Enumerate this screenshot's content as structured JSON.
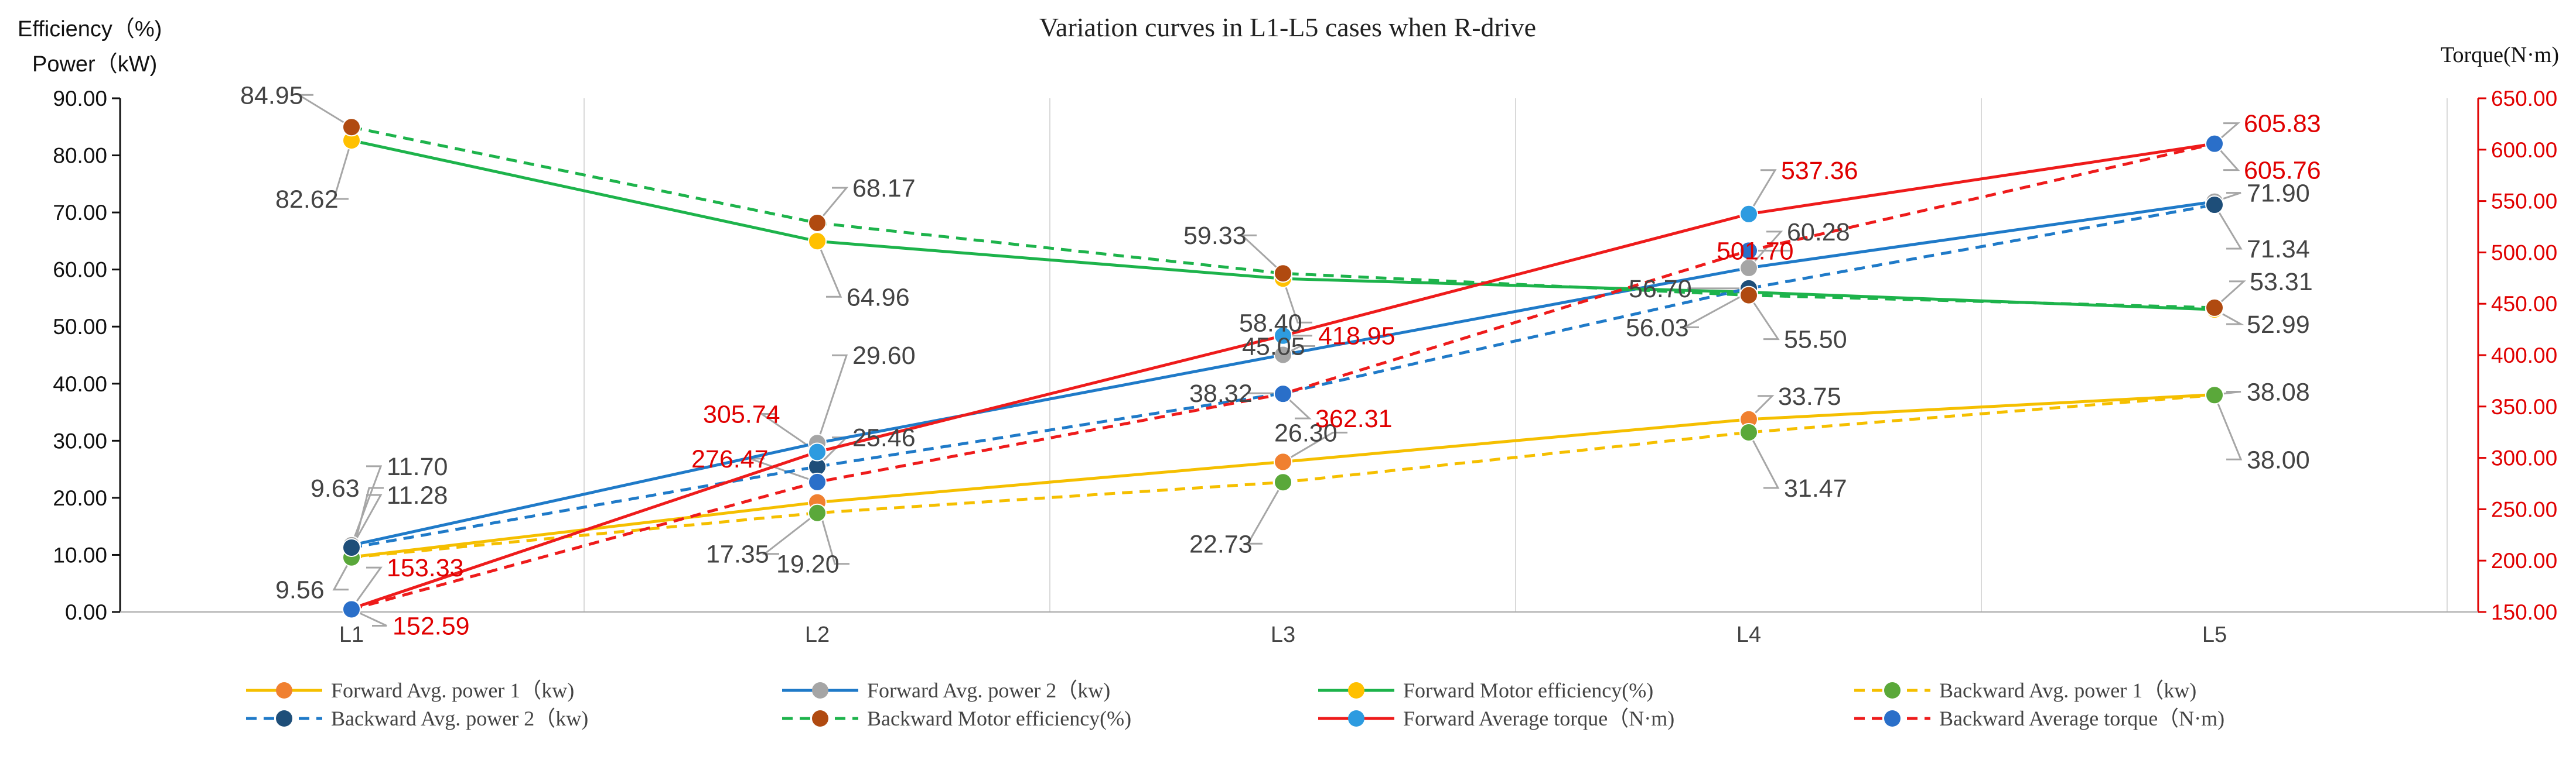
{
  "chart_data": {
    "type": "line",
    "title": "Variation curves in L1-L5 cases when R-drive",
    "ylabel_left": [
      "Efficiency（%)",
      "Power（kW)"
    ],
    "ylabel_right": "Torque(N·m)",
    "categories": [
      "L1",
      "L2",
      "L3",
      "L4",
      "L5"
    ],
    "ylim_left": [
      0,
      90
    ],
    "ylim_right": [
      150,
      650
    ],
    "left_ticks": [
      "0.00",
      "10.00",
      "20.00",
      "30.00",
      "40.00",
      "50.00",
      "60.00",
      "70.00",
      "80.00",
      "90.00"
    ],
    "right_ticks": [
      "150.00",
      "200.00",
      "250.00",
      "300.00",
      "350.00",
      "400.00",
      "450.00",
      "500.00",
      "550.00",
      "600.00",
      "650.00"
    ],
    "series": [
      {
        "name": "Forward Avg. power 1（kw)",
        "axis": "left",
        "line_color": "#f5bf00",
        "marker_color": "#f08030",
        "dashed": false,
        "values": [
          9.63,
          19.2,
          26.3,
          33.75,
          38.08
        ],
        "labels": [
          "9.63",
          "19.20",
          "26.30",
          "33.75",
          "38.08"
        ]
      },
      {
        "name": "Forward Avg. power 2（kw)",
        "axis": "left",
        "line_color": "#1f7ac8",
        "marker_color": "#a5a5a5",
        "dashed": false,
        "values": [
          11.7,
          29.6,
          45.05,
          60.28,
          71.9
        ],
        "labels": [
          "11.70",
          "29.60",
          "45.05",
          "60.28",
          "71.90"
        ]
      },
      {
        "name": "Forward Motor efficiency(%)",
        "axis": "left",
        "line_color": "#1db34b",
        "marker_color": "#ffc000",
        "dashed": false,
        "values": [
          82.62,
          64.96,
          58.4,
          56.03,
          52.99
        ],
        "labels": [
          "82.62",
          "64.96",
          "58.40",
          "56.03",
          "52.99"
        ]
      },
      {
        "name": "Backward Avg. power 1（kw)",
        "axis": "left",
        "line_color": "#f5bf00",
        "marker_color": "#5aa83a",
        "dashed": true,
        "values": [
          9.56,
          17.35,
          22.73,
          31.47,
          38.0
        ],
        "labels": [
          "9.56",
          "17.35",
          "22.73",
          "31.47",
          "38.00"
        ]
      },
      {
        "name": "Backward Avg. power 2（kw)",
        "axis": "left",
        "line_color": "#1f7ac8",
        "marker_color": "#1e4e79",
        "dashed": true,
        "values": [
          11.28,
          25.46,
          38.32,
          56.7,
          71.34
        ],
        "labels": [
          "11.28",
          "25.46",
          "38.32",
          "56.70",
          "71.34"
        ]
      },
      {
        "name": "Backward Motor efficiency(%)",
        "axis": "left",
        "line_color": "#1db34b",
        "marker_color": "#b04a10",
        "dashed": true,
        "values": [
          84.95,
          68.17,
          59.33,
          55.5,
          53.31
        ],
        "labels": [
          "84.95",
          "68.17",
          "59.33",
          "55.50",
          "53.31"
        ]
      },
      {
        "name": "Forward Average torque（N·m)",
        "axis": "right",
        "line_color": "#ee1b1b",
        "marker_color": "#2d9be0",
        "dashed": false,
        "values": [
          153.33,
          305.74,
          418.95,
          537.36,
          605.83
        ],
        "labels": [
          "153.33",
          "305.74",
          "418.95",
          "537.36",
          "605.83"
        ]
      },
      {
        "name": "Backward Average torque（N·m)",
        "axis": "right",
        "line_color": "#ee1b1b",
        "marker_color": "#2a6fc9",
        "dashed": true,
        "values": [
          152.59,
          276.47,
          362.31,
          501.7,
          605.76
        ],
        "labels": [
          "152.59",
          "276.47",
          "362.31",
          "501.70",
          "605.76"
        ]
      }
    ]
  }
}
